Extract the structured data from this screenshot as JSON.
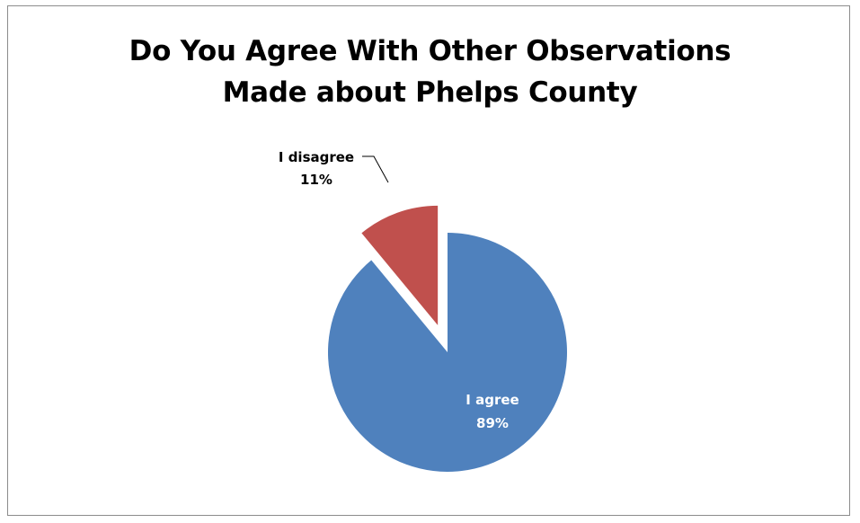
{
  "chart_data": {
    "type": "pie",
    "title": [
      "Do You Agree With Other Observations",
      "Made about Phelps County"
    ],
    "categories": [
      "I agree",
      "I disagree"
    ],
    "values": [
      89,
      11
    ],
    "value_labels": [
      "89%",
      "11%"
    ],
    "colors": [
      "#4f81bd",
      "#c0504d"
    ],
    "exploded": [
      "",
      "I disagree"
    ],
    "legend": "none"
  }
}
